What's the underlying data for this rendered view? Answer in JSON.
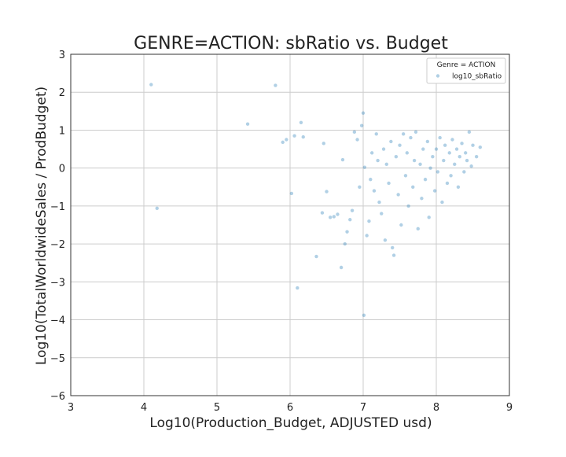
{
  "chart_data": {
    "type": "scatter",
    "title": "GENRE=ACTION: sbRatio vs. Budget",
    "xlabel": "Log10(Production_Budget, ADJUSTED usd)",
    "ylabel": "Log10(TotalWorldwideSales / ProdBudget)",
    "xlim": [
      3,
      9
    ],
    "ylim": [
      -6,
      3
    ],
    "xticks": [
      3,
      4,
      5,
      6,
      7,
      8,
      9
    ],
    "yticks": [
      -6,
      -5,
      -4,
      -3,
      -2,
      -1,
      0,
      1,
      2,
      3
    ],
    "grid": true,
    "legend": {
      "title": "Genre = ACTION",
      "placement": "top-right",
      "entries": [
        {
          "name": "log10_sbRatio",
          "color": "#1f77b4"
        }
      ]
    },
    "series": [
      {
        "name": "log10_sbRatio",
        "color": "#1f77b4",
        "points": [
          [
            4.1,
            2.2
          ],
          [
            4.18,
            -1.06
          ],
          [
            5.42,
            1.16
          ],
          [
            5.8,
            2.18
          ],
          [
            5.9,
            0.68
          ],
          [
            5.95,
            0.75
          ],
          [
            6.02,
            -0.67
          ],
          [
            6.06,
            0.85
          ],
          [
            6.15,
            1.2
          ],
          [
            6.18,
            0.82
          ],
          [
            6.1,
            -3.16
          ],
          [
            6.36,
            -2.33
          ],
          [
            6.46,
            0.65
          ],
          [
            6.5,
            -0.62
          ],
          [
            6.44,
            -1.18
          ],
          [
            6.55,
            -1.3
          ],
          [
            6.6,
            -1.28
          ],
          [
            6.65,
            -1.22
          ],
          [
            6.7,
            -2.62
          ],
          [
            6.72,
            0.22
          ],
          [
            6.75,
            -2.0
          ],
          [
            6.78,
            -1.68
          ],
          [
            6.82,
            -1.36
          ],
          [
            6.85,
            -1.12
          ],
          [
            6.88,
            0.95
          ],
          [
            6.92,
            0.75
          ],
          [
            6.95,
            -0.5
          ],
          [
            6.98,
            1.12
          ],
          [
            7.0,
            1.45
          ],
          [
            7.01,
            -3.88
          ],
          [
            7.05,
            -1.78
          ],
          [
            7.02,
            0.02
          ],
          [
            7.08,
            -1.4
          ],
          [
            7.1,
            -0.3
          ],
          [
            7.12,
            0.4
          ],
          [
            7.15,
            -0.6
          ],
          [
            7.18,
            0.9
          ],
          [
            7.2,
            0.2
          ],
          [
            7.22,
            -0.9
          ],
          [
            7.25,
            -1.2
          ],
          [
            7.28,
            0.5
          ],
          [
            7.3,
            -1.9
          ],
          [
            7.32,
            0.1
          ],
          [
            7.35,
            -0.4
          ],
          [
            7.38,
            0.7
          ],
          [
            7.4,
            -2.1
          ],
          [
            7.42,
            -2.3
          ],
          [
            7.45,
            0.3
          ],
          [
            7.48,
            -0.7
          ],
          [
            7.5,
            0.6
          ],
          [
            7.52,
            -1.5
          ],
          [
            7.55,
            0.9
          ],
          [
            7.58,
            -0.2
          ],
          [
            7.6,
            0.4
          ],
          [
            7.62,
            -1.0
          ],
          [
            7.65,
            0.8
          ],
          [
            7.68,
            -0.5
          ],
          [
            7.7,
            0.2
          ],
          [
            7.72,
            0.95
          ],
          [
            7.75,
            -1.6
          ],
          [
            7.78,
            0.1
          ],
          [
            7.8,
            -0.8
          ],
          [
            7.82,
            0.5
          ],
          [
            7.85,
            -0.3
          ],
          [
            7.88,
            0.7
          ],
          [
            7.9,
            -1.3
          ],
          [
            7.92,
            0.0
          ],
          [
            7.95,
            0.3
          ],
          [
            7.98,
            -0.6
          ],
          [
            8.0,
            0.5
          ],
          [
            8.02,
            -0.1
          ],
          [
            8.05,
            0.8
          ],
          [
            8.08,
            -0.9
          ],
          [
            8.1,
            0.2
          ],
          [
            8.12,
            0.6
          ],
          [
            8.15,
            -0.4
          ],
          [
            8.18,
            0.4
          ],
          [
            8.2,
            -0.2
          ],
          [
            8.22,
            0.75
          ],
          [
            8.25,
            0.1
          ],
          [
            8.28,
            0.5
          ],
          [
            8.3,
            -0.5
          ],
          [
            8.32,
            0.3
          ],
          [
            8.35,
            0.65
          ],
          [
            8.38,
            -0.1
          ],
          [
            8.4,
            0.4
          ],
          [
            8.42,
            0.2
          ],
          [
            8.45,
            0.95
          ],
          [
            8.48,
            0.05
          ],
          [
            8.5,
            0.6
          ],
          [
            8.55,
            0.3
          ],
          [
            8.6,
            0.55
          ]
        ]
      }
    ]
  }
}
